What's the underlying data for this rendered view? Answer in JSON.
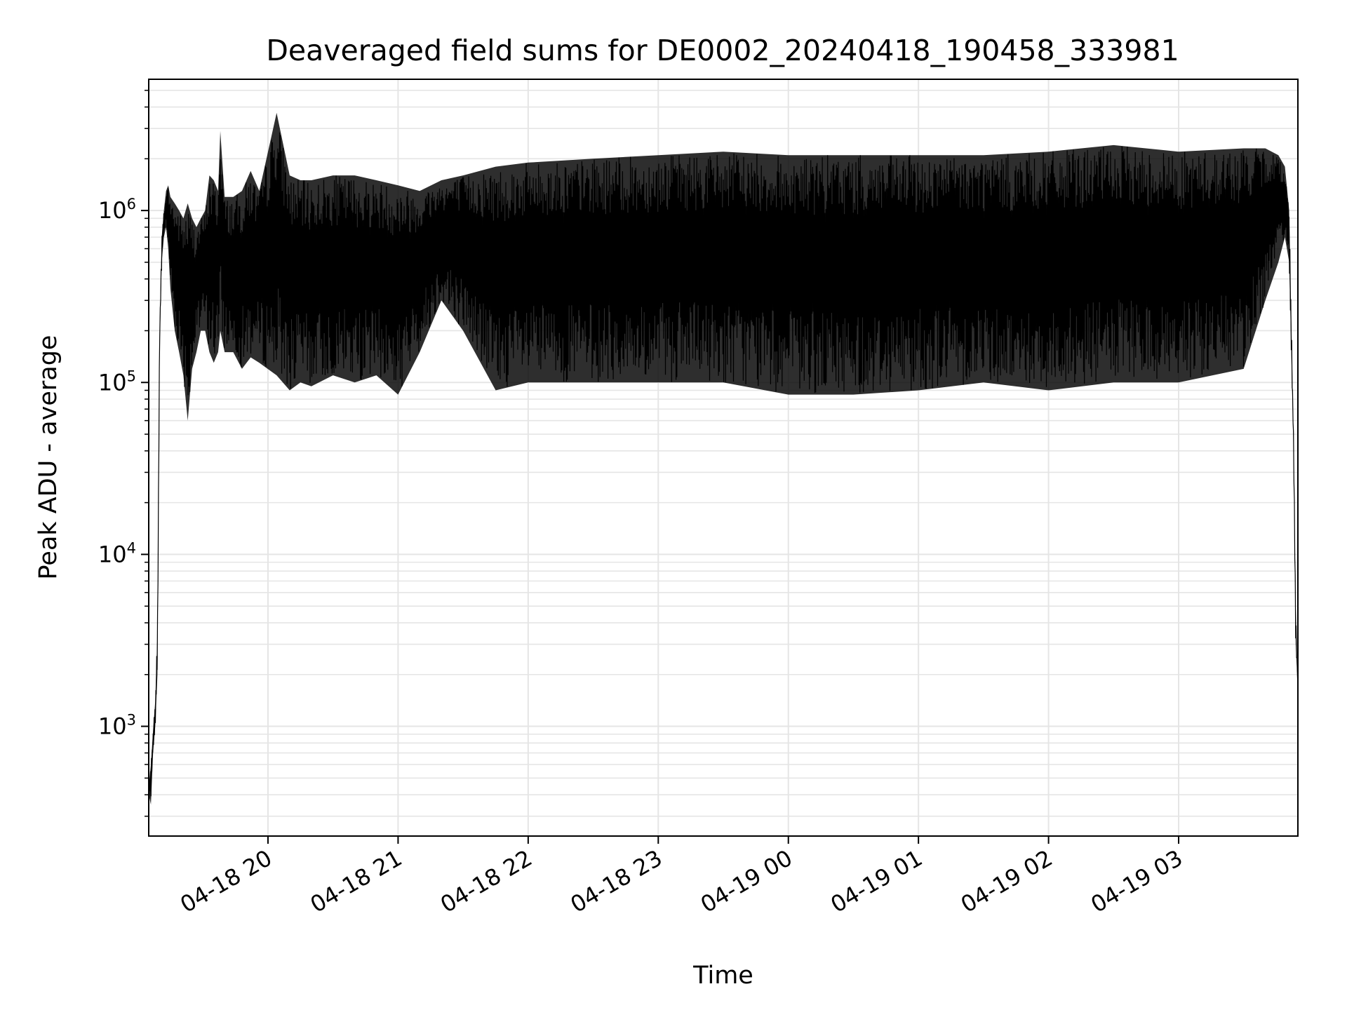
{
  "chart_data": {
    "type": "line",
    "title": "Deaveraged field sums for DE0002_20240418_190458_333981",
    "xlabel": "Time",
    "ylabel": "Peak ADU - average",
    "y_scale": "log",
    "ylim": [
      230,
      5800000
    ],
    "xlim": [
      "2024-04-18 19:05",
      "2024-04-19 03:55"
    ],
    "grid": true,
    "grid_color": "#e5e5e5",
    "line_color": "#000000",
    "x_ticks": [
      {
        "value": "2024-04-18 20:00",
        "label": "04-18 20"
      },
      {
        "value": "2024-04-18 21:00",
        "label": "04-18 21"
      },
      {
        "value": "2024-04-18 22:00",
        "label": "04-18 22"
      },
      {
        "value": "2024-04-18 23:00",
        "label": "04-18 23"
      },
      {
        "value": "2024-04-19 00:00",
        "label": "04-19 00"
      },
      {
        "value": "2024-04-19 01:00",
        "label": "04-19 01"
      },
      {
        "value": "2024-04-19 02:00",
        "label": "04-19 02"
      },
      {
        "value": "2024-04-19 03:00",
        "label": "04-19 03"
      }
    ],
    "y_ticks": [
      {
        "value": 1000,
        "base": "10",
        "exp": "3"
      },
      {
        "value": 10000,
        "base": "10",
        "exp": "4"
      },
      {
        "value": 100000,
        "base": "10",
        "exp": "5"
      },
      {
        "value": 1000000,
        "base": "10",
        "exp": "6"
      }
    ],
    "series": [
      {
        "x": [
          "2024-04-18 19:05",
          "2024-04-18 19:06",
          "2024-04-18 19:07",
          "2024-04-18 19:08",
          "2024-04-18 19:09",
          "2024-04-18 19:10",
          "2024-04-18 19:11",
          "2024-04-18 19:12",
          "2024-04-18 19:13",
          "2024-04-18 19:14",
          "2024-04-18 19:15",
          "2024-04-18 19:17",
          "2024-04-18 19:19",
          "2024-04-18 19:21",
          "2024-04-18 19:23",
          "2024-04-18 19:25",
          "2024-04-18 19:27",
          "2024-04-18 19:29",
          "2024-04-18 19:31",
          "2024-04-18 19:33",
          "2024-04-18 19:35",
          "2024-04-18 19:37",
          "2024-04-18 19:38",
          "2024-04-18 19:40",
          "2024-04-18 19:44",
          "2024-04-18 19:48",
          "2024-04-18 19:52",
          "2024-04-18 19:56",
          "2024-04-18 20:04",
          "2024-04-18 20:10",
          "2024-04-18 20:15",
          "2024-04-18 20:20",
          "2024-04-18 20:30",
          "2024-04-18 20:40",
          "2024-04-18 20:50",
          "2024-04-18 21:00",
          "2024-04-18 21:10",
          "2024-04-18 21:20",
          "2024-04-18 21:30",
          "2024-04-18 21:45",
          "2024-04-18 22:00",
          "2024-04-18 22:30",
          "2024-04-18 23:00",
          "2024-04-18 23:30",
          "2024-04-19 00:00",
          "2024-04-19 00:30",
          "2024-04-19 01:00",
          "2024-04-19 01:30",
          "2024-04-19 02:00",
          "2024-04-19 02:30",
          "2024-04-19 03:00",
          "2024-04-19 03:30",
          "2024-04-19 03:40",
          "2024-04-19 03:46",
          "2024-04-19 03:49",
          "2024-04-19 03:51",
          "2024-04-19 03:53",
          "2024-04-19 03:54",
          "2024-04-19 03:55"
        ],
        "upper": [
          450,
          600,
          950,
          1400,
          3500,
          200000,
          700000,
          1000000,
          1300000,
          1400000,
          1200000,
          1100000,
          1000000,
          900000,
          1100000,
          900000,
          800000,
          900000,
          1000000,
          1600000,
          1500000,
          1300000,
          2900000,
          1200000,
          1200000,
          1300000,
          1700000,
          1300000,
          3700000,
          1600000,
          1500000,
          1500000,
          1600000,
          1600000,
          1500000,
          1400000,
          1300000,
          1500000,
          1600000,
          1800000,
          1900000,
          2000000,
          2100000,
          2200000,
          2100000,
          2100000,
          2100000,
          2100000,
          2200000,
          2400000,
          2200000,
          2300000,
          2300000,
          2100000,
          1800000,
          1000000,
          50000,
          5000,
          1700
        ],
        "lower": [
          400,
          350,
          700,
          1000,
          2000,
          150000,
          500000,
          700000,
          800000,
          600000,
          350000,
          200000,
          150000,
          110000,
          60000,
          120000,
          150000,
          200000,
          200000,
          150000,
          130000,
          150000,
          200000,
          150000,
          150000,
          120000,
          140000,
          130000,
          110000,
          90000,
          100000,
          95000,
          110000,
          100000,
          110000,
          85000,
          150000,
          300000,
          200000,
          90000,
          100000,
          100000,
          100000,
          100000,
          85000,
          85000,
          90000,
          100000,
          90000,
          100000,
          100000,
          120000,
          300000,
          500000,
          700000,
          500000,
          40000,
          3000,
          1700
        ]
      }
    ]
  }
}
